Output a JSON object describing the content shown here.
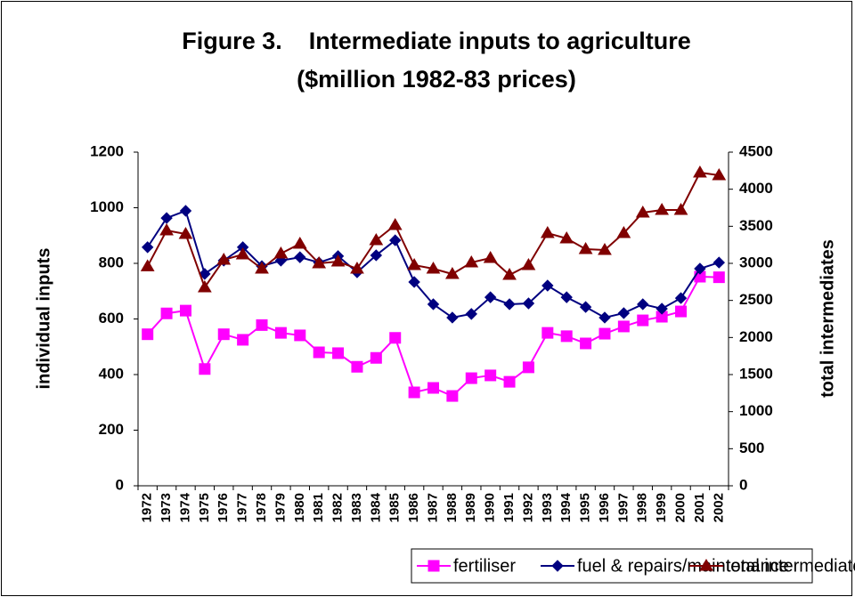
{
  "chart_data": {
    "type": "line",
    "title": [
      "Figure 3.    Intermediate inputs to agriculture",
      "($million 1982-83 prices)"
    ],
    "y_label": "individual inputs",
    "y2_label": "total intermediates",
    "categories": [
      "1972",
      "1973",
      "1974",
      "1975",
      "1976",
      "1977",
      "1978",
      "1979",
      "1980",
      "1981",
      "1982",
      "1983",
      "1984",
      "1985",
      "1986",
      "1987",
      "1988",
      "1989",
      "1990",
      "1991",
      "1992",
      "1993",
      "1994",
      "1995",
      "1996",
      "1997",
      "1998",
      "1999",
      "2000",
      "2001",
      "2002"
    ],
    "series": [
      {
        "name": "fertiliser",
        "color": "#ff00ff",
        "marker": "square",
        "values": [
          545,
          620,
          630,
          420,
          545,
          525,
          578,
          550,
          541,
          480,
          477,
          428,
          460,
          532,
          336,
          352,
          323,
          387,
          397,
          374,
          426,
          550,
          538,
          512,
          547,
          573,
          595,
          608,
          627,
          752,
          750
        ]
      },
      {
        "name": "fuel & repairs/maintenance",
        "color": "#000080",
        "marker": "diamond",
        "values": [
          858,
          963,
          989,
          762,
          810,
          858,
          790,
          810,
          822,
          803,
          826,
          768,
          829,
          883,
          733,
          653,
          605,
          618,
          678,
          653,
          656,
          720,
          678,
          643,
          605,
          621,
          653,
          637,
          675,
          781,
          803
        ]
      },
      {
        "name": "total intermediates",
        "color": "#800000",
        "marker": "triangle",
        "axis": "y2",
        "values": [
          2960,
          3444,
          3396,
          2676,
          3048,
          3120,
          2928,
          3132,
          3264,
          3000,
          3024,
          2928,
          3312,
          3516,
          2976,
          2928,
          2856,
          3012,
          3072,
          2844,
          2976,
          3408,
          3336,
          3192,
          3180,
          3408,
          3684,
          3720,
          3720,
          4224,
          4188
        ]
      }
    ],
    "ylim": [
      0,
      1200
    ],
    "yticks": [
      0,
      200,
      400,
      600,
      800,
      1000,
      1200
    ],
    "y2lim": [
      0,
      4500
    ],
    "y2ticks": [
      0,
      500,
      1000,
      1500,
      2000,
      2500,
      3000,
      3500,
      4000,
      4500
    ],
    "grid": false,
    "legend": "bottom"
  }
}
